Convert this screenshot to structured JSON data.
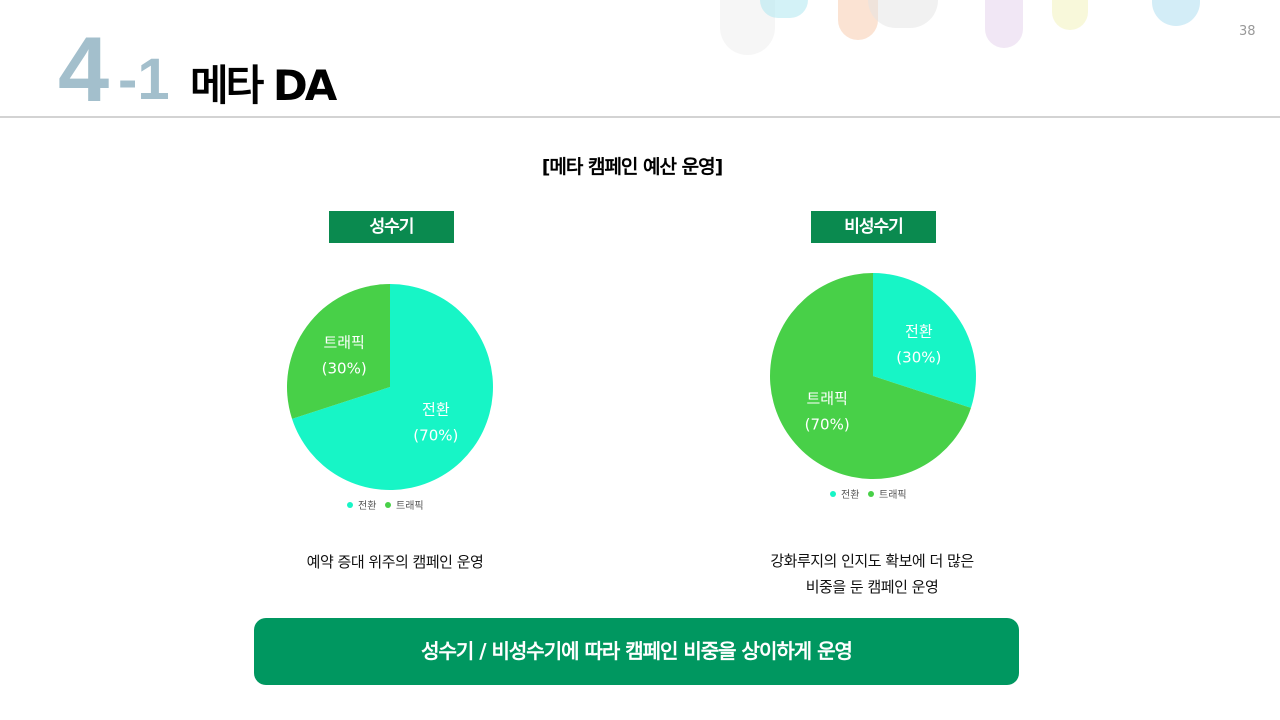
{
  "header": {
    "section_number": "4",
    "section_sub": "-1",
    "title": "메타 DA",
    "page_number": "38"
  },
  "subtitle": "[메타 캠페인 예산 운영]",
  "colors": {
    "전환": "#17f5c6",
    "트래픽": "#48d048",
    "tag_bg": "#0a8a4f",
    "banner_bg": "#009760"
  },
  "chart_data": [
    {
      "type": "pie",
      "title": "성수기",
      "legend": "bottom",
      "slices": [
        {
          "label": "전환",
          "value": 70,
          "text": "(70%)"
        },
        {
          "label": "트래픽",
          "value": 30,
          "text": "(30%)"
        }
      ]
    },
    {
      "type": "pie",
      "title": "비성수기",
      "legend": "bottom",
      "slices": [
        {
          "label": "전환",
          "value": 30,
          "text": "(30%)"
        },
        {
          "label": "트래픽",
          "value": 70,
          "text": "(70%)"
        }
      ]
    }
  ],
  "descriptions": [
    "예약 증대 위주의 캠페인 운영",
    [
      "강화루지의 인지도 확보에 더 많은",
      "비중을 둔 캠페인 운영"
    ]
  ],
  "banner": "성수기 / 비성수기에 따라 캠페인 비중을 상이하게 운영"
}
